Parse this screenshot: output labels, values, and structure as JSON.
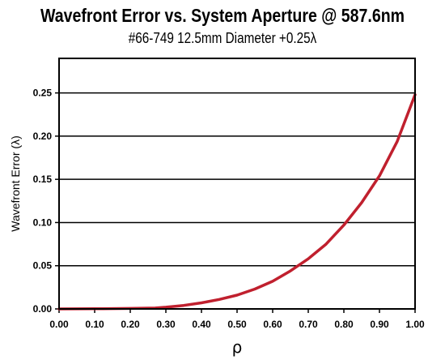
{
  "chart_data": {
    "type": "line",
    "title": "Wavefront Error vs. System Aperture @ 587.6nm",
    "subtitle": "#66-749 12.5mm Diameter +0.25λ",
    "xlabel": "ρ",
    "ylabel": "Wavefront Error (λ)",
    "xlim": [
      0,
      1
    ],
    "ylim": [
      0,
      0.29
    ],
    "x_ticks": [
      "0.00",
      "0.10",
      "0.20",
      "0.30",
      "0.40",
      "0.50",
      "0.60",
      "0.70",
      "0.80",
      "0.90",
      "1.00"
    ],
    "y_ticks": [
      "0.00",
      "0.05",
      "0.10",
      "0.15",
      "0.20",
      "0.25"
    ],
    "grid": "horizontal",
    "line_color": "#c0202e",
    "series": [
      {
        "x": [
          0.0,
          0.1,
          0.2,
          0.27,
          0.3,
          0.35,
          0.4,
          0.45,
          0.5,
          0.55,
          0.6,
          0.65,
          0.7,
          0.75,
          0.8,
          0.85,
          0.9,
          0.95,
          1.0
        ],
        "y": [
          0.0,
          0.0002,
          0.0006,
          0.001,
          0.002,
          0.004,
          0.007,
          0.011,
          0.016,
          0.023,
          0.032,
          0.044,
          0.058,
          0.075,
          0.097,
          0.123,
          0.154,
          0.194,
          0.248
        ]
      }
    ]
  }
}
